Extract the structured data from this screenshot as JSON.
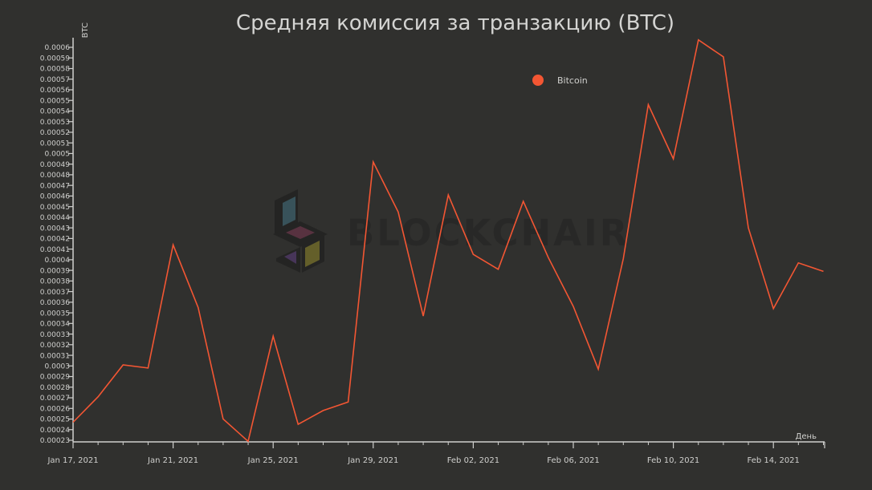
{
  "chart_data": {
    "type": "line",
    "title": "Средняя комиссия за транзакцию (BTC)",
    "xlabel": "День",
    "ylabel": "BTC",
    "legend": {
      "label": "Bitcoin",
      "placement": "top-right"
    },
    "watermark": "BLOCKCHAIR",
    "x_tick_labels": [
      "Jan 17, 2021",
      "Jan 21, 2021",
      "Jan 25, 2021",
      "Jan 29, 2021",
      "Feb 02, 2021",
      "Feb 06, 2021",
      "Feb 10, 2021",
      "Feb 14, 2021"
    ],
    "y_tick_labels": [
      "0.00023",
      "0.00024",
      "0.00025",
      "0.00026",
      "0.00027",
      "0.00028",
      "0.00029",
      "0.0003",
      "0.00031",
      "0.00032",
      "0.00033",
      "0.00034",
      "0.00035",
      "0.00036",
      "0.00037",
      "0.00038",
      "0.00039",
      "0.0004",
      "0.00041",
      "0.00042",
      "0.00043",
      "0.00044",
      "0.00045",
      "0.00046",
      "0.00047",
      "0.00048",
      "0.00049",
      "0.0005",
      "0.00051",
      "0.00052",
      "0.00053",
      "0.00054",
      "0.00055",
      "0.00056",
      "0.00057",
      "0.00058",
      "0.00059",
      "0.0006"
    ],
    "ylim": [
      0.00023,
      0.0006
    ],
    "xlim": [
      "2021-01-17",
      "2021-02-15"
    ],
    "grid": false,
    "series": [
      {
        "name": "Bitcoin",
        "color": "#f35633",
        "points": [
          [
            "2021-01-17",
            0.000247
          ],
          [
            "2021-01-18",
            0.000271
          ],
          [
            "2021-01-19",
            0.000301
          ],
          [
            "2021-01-20",
            0.000298
          ],
          [
            "2021-01-21",
            0.000414
          ],
          [
            "2021-01-22",
            0.000355
          ],
          [
            "2021-01-23",
            0.00025
          ],
          [
            "2021-01-24",
            0.000229
          ],
          [
            "2021-01-25",
            0.000328
          ],
          [
            "2021-01-26",
            0.000245
          ],
          [
            "2021-01-27",
            0.000258
          ],
          [
            "2021-01-28",
            0.000266
          ],
          [
            "2021-01-29",
            0.000492
          ],
          [
            "2021-01-30",
            0.000445
          ],
          [
            "2021-01-31",
            0.000347
          ],
          [
            "2021-02-01",
            0.000461
          ],
          [
            "2021-02-02",
            0.000405
          ],
          [
            "2021-02-03",
            0.000391
          ],
          [
            "2021-02-04",
            0.000455
          ],
          [
            "2021-02-05",
            0.000402
          ],
          [
            "2021-02-06",
            0.000356
          ],
          [
            "2021-02-07",
            0.000297
          ],
          [
            "2021-02-08",
            0.000401
          ],
          [
            "2021-02-09",
            0.000546
          ],
          [
            "2021-02-10",
            0.000495
          ],
          [
            "2021-02-11",
            0.000607
          ],
          [
            "2021-02-12",
            0.000591
          ],
          [
            "2021-02-13",
            0.00043
          ],
          [
            "2021-02-14",
            0.000354
          ],
          [
            "2021-02-15",
            0.000397
          ],
          [
            "2021-02-16",
            0.000389
          ]
        ]
      }
    ]
  }
}
